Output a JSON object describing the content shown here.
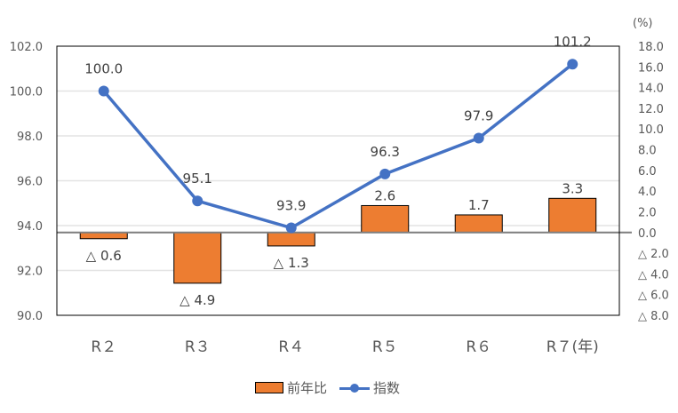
{
  "chart_data": {
    "type": "bar+line",
    "categories": [
      "R２",
      "R３",
      "R４",
      "R５",
      "R６",
      "R７(年)"
    ],
    "series": [
      {
        "name": "前年比",
        "type": "bar",
        "axis": "right",
        "color": "#ED7D31",
        "values": [
          -0.6,
          -4.9,
          -1.3,
          2.6,
          1.7,
          3.3
        ],
        "labels": [
          "△ 0.6",
          "△ 4.9",
          "△ 1.3",
          "2.6",
          "1.7",
          "3.3"
        ]
      },
      {
        "name": "指数",
        "type": "line",
        "axis": "left",
        "color": "#4472C4",
        "values": [
          100.0,
          95.1,
          93.9,
          96.3,
          97.9,
          101.2
        ],
        "labels": [
          "100.0",
          "95.1",
          "93.9",
          "96.3",
          "97.9",
          "101.2"
        ]
      }
    ],
    "left_axis": {
      "ylim": [
        90,
        102
      ],
      "ticks": [
        "90.0",
        "92.0",
        "94.0",
        "96.0",
        "98.0",
        "100.0",
        "102.0"
      ]
    },
    "right_axis": {
      "unit": "(%)",
      "ylim": [
        -8,
        18
      ],
      "ticks": [
        "△ 8.0",
        "△ 6.0",
        "△ 4.0",
        "△ 2.0",
        "0.0",
        "2.0",
        "4.0",
        "6.0",
        "8.0",
        "10.0",
        "12.0",
        "14.0",
        "16.0",
        "18.0"
      ]
    },
    "grid": true,
    "legend_position": "bottom",
    "title": "",
    "xlabel": "",
    "ylabel": ""
  },
  "legend": {
    "bar_label": "前年比",
    "line_label": "指数"
  },
  "right_axis_unit": "(%)"
}
